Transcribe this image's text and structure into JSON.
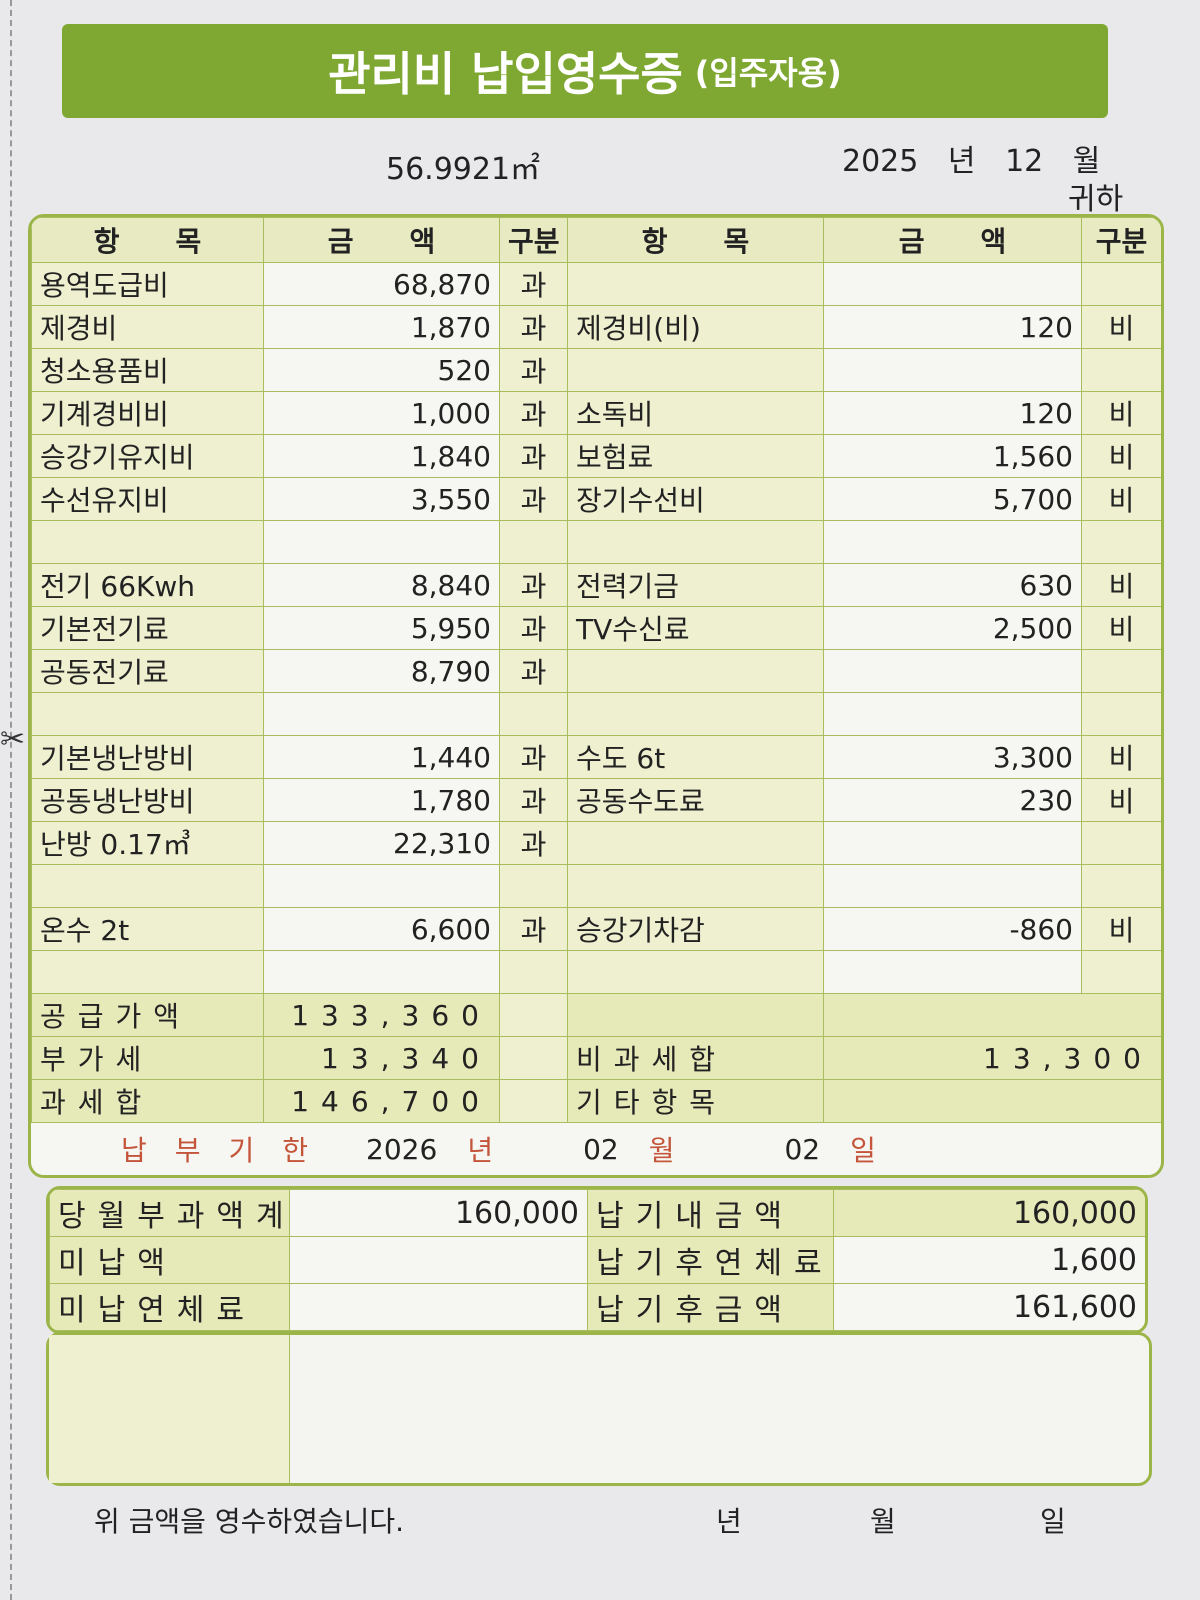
{
  "title": {
    "main": "관리비 납입영수증",
    "sub": "(입주자용)"
  },
  "area": "56.9921㎡",
  "period": {
    "year": "2025",
    "year_unit": "년",
    "month": "12",
    "month_unit": "월"
  },
  "recipient_suffix": "귀하",
  "headers": [
    "항　　목",
    "금　　액",
    "구분",
    "항　　목",
    "금　　액",
    "구분"
  ],
  "rows": [
    [
      "용역도급비",
      "68,870",
      "과",
      "",
      "",
      ""
    ],
    [
      "제경비",
      "1,870",
      "과",
      "제경비(비)",
      "120",
      "비"
    ],
    [
      "청소용품비",
      "520",
      "과",
      "",
      "",
      ""
    ],
    [
      "기계경비비",
      "1,000",
      "과",
      "소독비",
      "120",
      "비"
    ],
    [
      "승강기유지비",
      "1,840",
      "과",
      "보험료",
      "1,560",
      "비"
    ],
    [
      "수선유지비",
      "3,550",
      "과",
      "장기수선비",
      "5,700",
      "비"
    ],
    [
      "",
      "",
      "",
      "",
      "",
      ""
    ],
    [
      "전기 66Kwh",
      "8,840",
      "과",
      "전력기금",
      "630",
      "비"
    ],
    [
      "기본전기료",
      "5,950",
      "과",
      "TV수신료",
      "2,500",
      "비"
    ],
    [
      "공동전기료",
      "8,790",
      "과",
      "",
      "",
      ""
    ],
    [
      "",
      "",
      "",
      "",
      "",
      ""
    ],
    [
      "기본냉난방비",
      "1,440",
      "과",
      "수도 6t",
      "3,300",
      "비"
    ],
    [
      "공동냉난방비",
      "1,780",
      "과",
      "공동수도료",
      "230",
      "비"
    ],
    [
      "난방 0.17㎥",
      "22,310",
      "과",
      "",
      "",
      ""
    ],
    [
      "",
      "",
      "",
      "",
      "",
      ""
    ],
    [
      "온수 2t",
      "6,600",
      "과",
      "승강기차감",
      "-860",
      "비"
    ],
    [
      "",
      "",
      "",
      "",
      "",
      ""
    ]
  ],
  "summary": [
    [
      "공급가액",
      "133,360",
      "",
      "",
      ""
    ],
    [
      "부가세",
      "13,340",
      "",
      "비과세합",
      "13,300"
    ],
    [
      "과세합",
      "146,700",
      "",
      "기타항목",
      ""
    ]
  ],
  "due": {
    "label": "납부기한",
    "year": "2026",
    "year_unit": "년",
    "month": "02",
    "month_unit": "월",
    "day": "02",
    "day_unit": "일"
  },
  "totals": [
    [
      "당월부과액계",
      "160,000",
      "납기내금액",
      "160,000"
    ],
    [
      "미납액",
      "",
      "납기후연체료",
      "1,600"
    ],
    [
      "미납연체료",
      "",
      "납기후금액",
      "161,600"
    ]
  ],
  "footer": {
    "text": "위 금액을 영수하였습니다.",
    "year": "년",
    "month": "월",
    "day": "일"
  },
  "colors": {
    "accent": "#7fa833",
    "border": "#9cb548"
  }
}
